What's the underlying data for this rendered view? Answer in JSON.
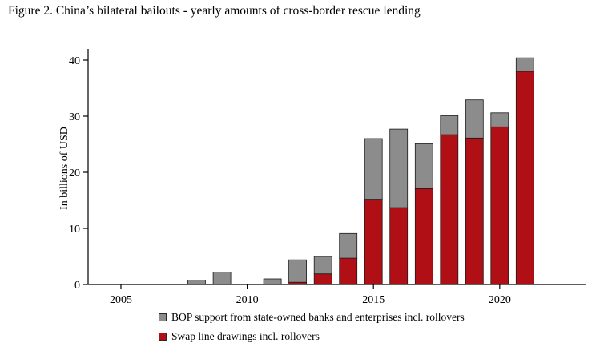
{
  "figure": {
    "caption": "Figure 2. China’s bilateral bailouts - yearly amounts of cross-border rescue lending"
  },
  "chart_data": {
    "type": "bar",
    "stacked": true,
    "title": "",
    "xlabel": "",
    "ylabel": "In billions of USD",
    "ylim": [
      0,
      42
    ],
    "yticks": [
      0,
      10,
      20,
      30,
      40
    ],
    "xticks": [
      2005,
      2010,
      2015,
      2020
    ],
    "x_range": [
      2003.7,
      2023.4
    ],
    "grid": false,
    "legend_position": "bottom",
    "categories": [
      2008,
      2009,
      2011,
      2012,
      2013,
      2014,
      2015,
      2016,
      2017,
      2018,
      2019,
      2020,
      2021
    ],
    "series": [
      {
        "name": "Swap line drawings incl. rollovers",
        "color": "#b01015",
        "values": [
          0,
          0,
          0,
          0.4,
          1.9,
          4.7,
          15.2,
          13.7,
          17.1,
          26.7,
          26.1,
          28.1,
          38.0
        ]
      },
      {
        "name": "BOP support from state-owned banks and enterprises incl. rollovers",
        "color": "#8c8c8c",
        "values": [
          0.8,
          2.2,
          1.0,
          4.0,
          3.1,
          4.4,
          10.8,
          14.0,
          8.0,
          3.4,
          6.8,
          2.5,
          2.4
        ]
      }
    ],
    "legend": [
      {
        "label": "BOP support from state-owned banks and enterprises incl. rollovers",
        "color": "#8c8c8c"
      },
      {
        "label": "Swap line drawings incl. rollovers",
        "color": "#b01015"
      }
    ]
  }
}
